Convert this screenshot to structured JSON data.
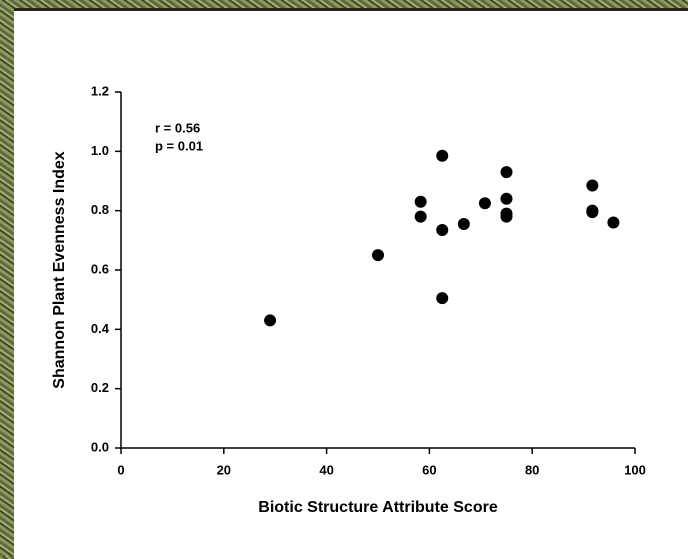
{
  "chart_data": {
    "type": "scatter",
    "x_label": "Biotic Structure Attribute Score",
    "y_label": "Shannon Plant Evenness Index",
    "annotations": [
      "r = 0.56",
      "p = 0.01"
    ],
    "x": [
      29,
      50,
      58.3,
      58.3,
      62.5,
      62.5,
      62.5,
      66.7,
      70.8,
      75,
      75,
      75,
      75,
      91.7,
      91.7,
      91.7,
      95.8
    ],
    "values": [
      0.43,
      0.65,
      0.83,
      0.78,
      0.985,
      0.735,
      0.505,
      0.755,
      0.825,
      0.93,
      0.84,
      0.79,
      0.78,
      0.885,
      0.8,
      0.795,
      0.76
    ],
    "color": "#000000",
    "xlim": [
      0,
      100
    ],
    "xticks": [
      0,
      20,
      40,
      60,
      80,
      100
    ],
    "ylim": [
      0,
      1.2
    ],
    "yticks": [
      {
        "value": 0,
        "label": "0.0"
      },
      {
        "value": 0.2,
        "label": "0.2"
      },
      {
        "value": 0.4,
        "label": "0.4"
      },
      {
        "value": 0.6,
        "label": "0.6"
      },
      {
        "value": 0.8,
        "label": "0.8"
      },
      {
        "value": 1,
        "label": "1.0"
      },
      {
        "value": 1.2,
        "label": "1.2"
      }
    ],
    "grid": false
  }
}
